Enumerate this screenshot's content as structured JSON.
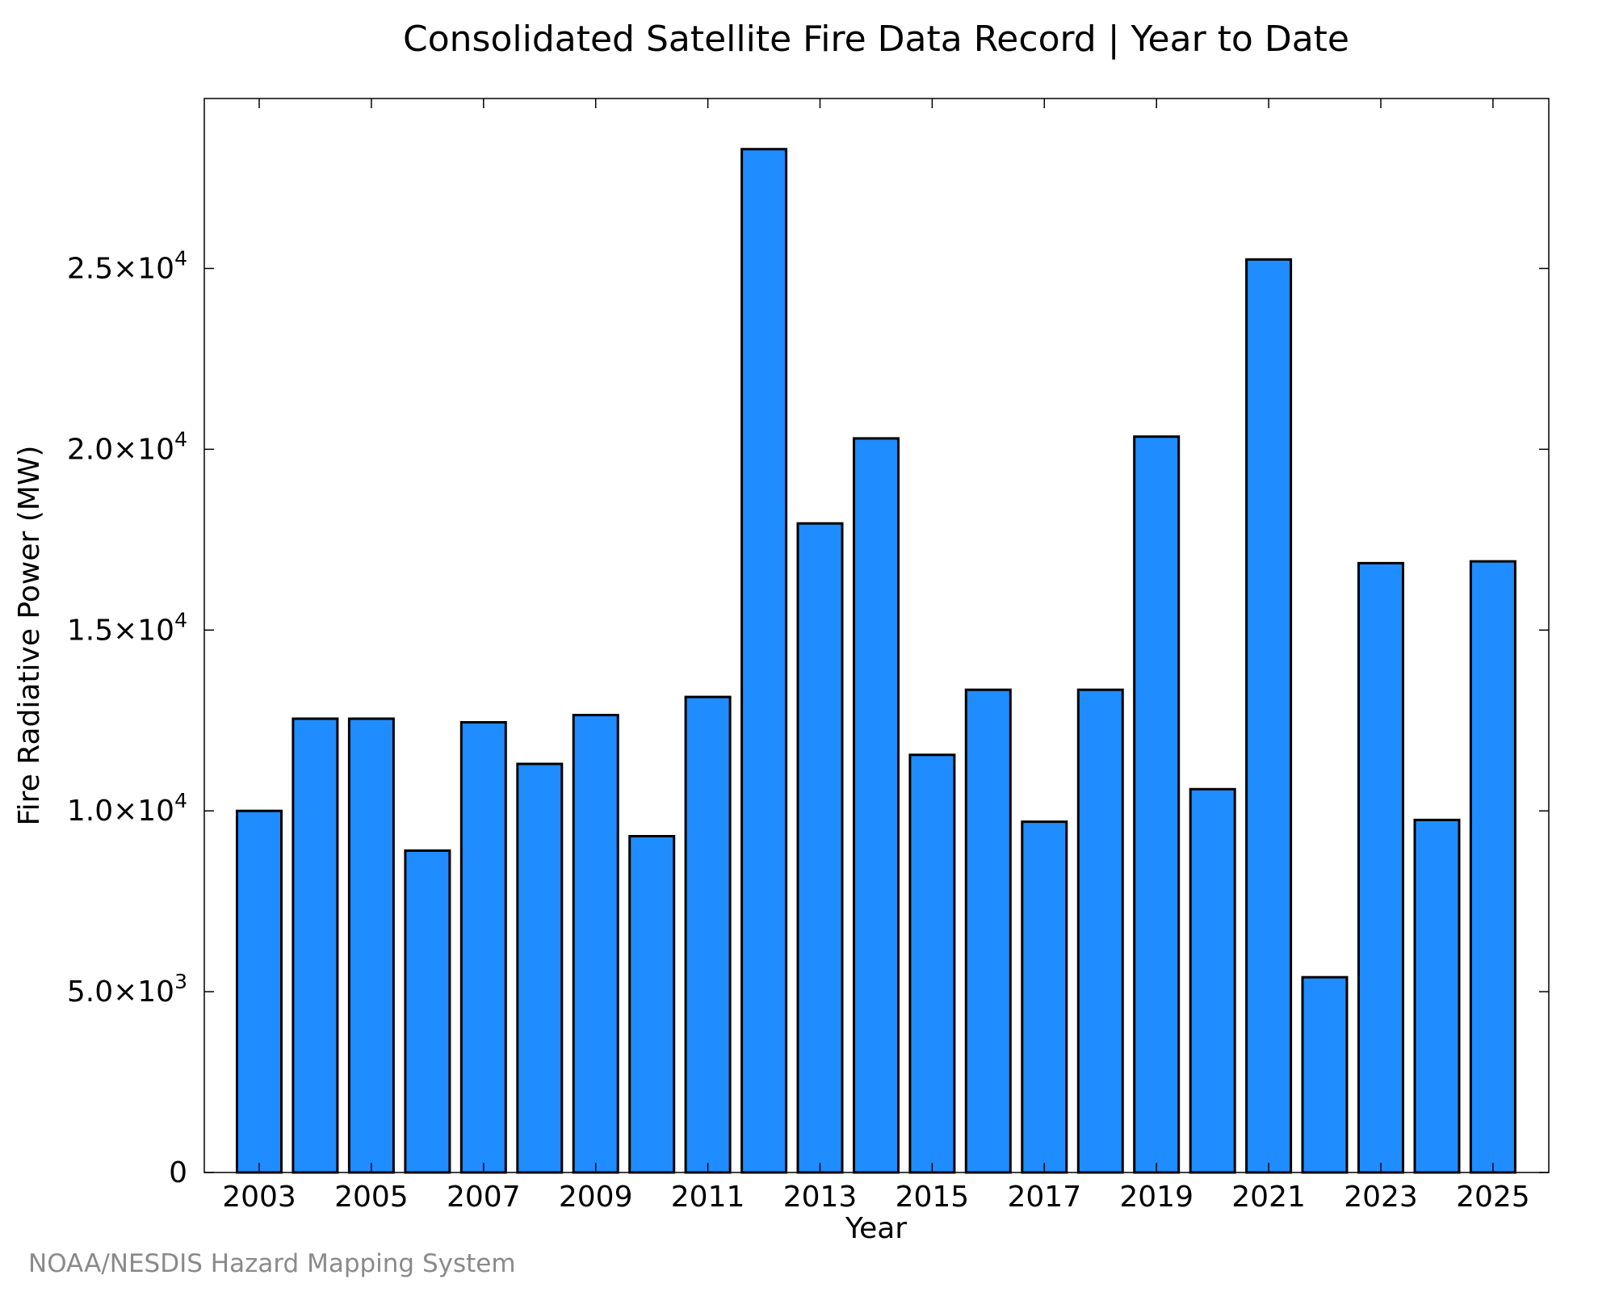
{
  "chart_data": {
    "type": "bar",
    "title": "Consolidated Satellite Fire Data Record | Year to Date",
    "xlabel": "Year",
    "ylabel": "Fire Radiative Power (MW)",
    "categories": [
      "2003",
      "2004",
      "2005",
      "2006",
      "2007",
      "2008",
      "2009",
      "2010",
      "2011",
      "2012",
      "2013",
      "2014",
      "2015",
      "2016",
      "2017",
      "2018",
      "2019",
      "2020",
      "2021",
      "2022",
      "2023",
      "2024",
      "2025"
    ],
    "values": [
      10000,
      12550,
      12550,
      8900,
      12450,
      11300,
      12650,
      9300,
      13150,
      28300,
      17950,
      20300,
      11550,
      13350,
      9700,
      13350,
      20350,
      10600,
      25250,
      5400,
      16850,
      9750,
      16900
    ],
    "x_tick_labels": [
      "2003",
      "2005",
      "2007",
      "2009",
      "2011",
      "2013",
      "2015",
      "2017",
      "2019",
      "2021",
      "2023",
      "2025"
    ],
    "y_ticks": [
      {
        "value": 0,
        "mantissa": "0",
        "exp": ""
      },
      {
        "value": 5000,
        "mantissa": "5.0×10",
        "exp": "3"
      },
      {
        "value": 10000,
        "mantissa": "1.0×10",
        "exp": "4"
      },
      {
        "value": 15000,
        "mantissa": "1.5×10",
        "exp": "4"
      },
      {
        "value": 20000,
        "mantissa": "2.0×10",
        "exp": "4"
      },
      {
        "value": 25000,
        "mantissa": "2.5×10",
        "exp": "4"
      }
    ],
    "ylim": [
      0,
      29700
    ],
    "grid": false,
    "colors": {
      "bar_fill": "#1f8cff",
      "bar_edge": "#000000"
    }
  },
  "source": "NOAA/NESDIS Hazard Mapping System"
}
